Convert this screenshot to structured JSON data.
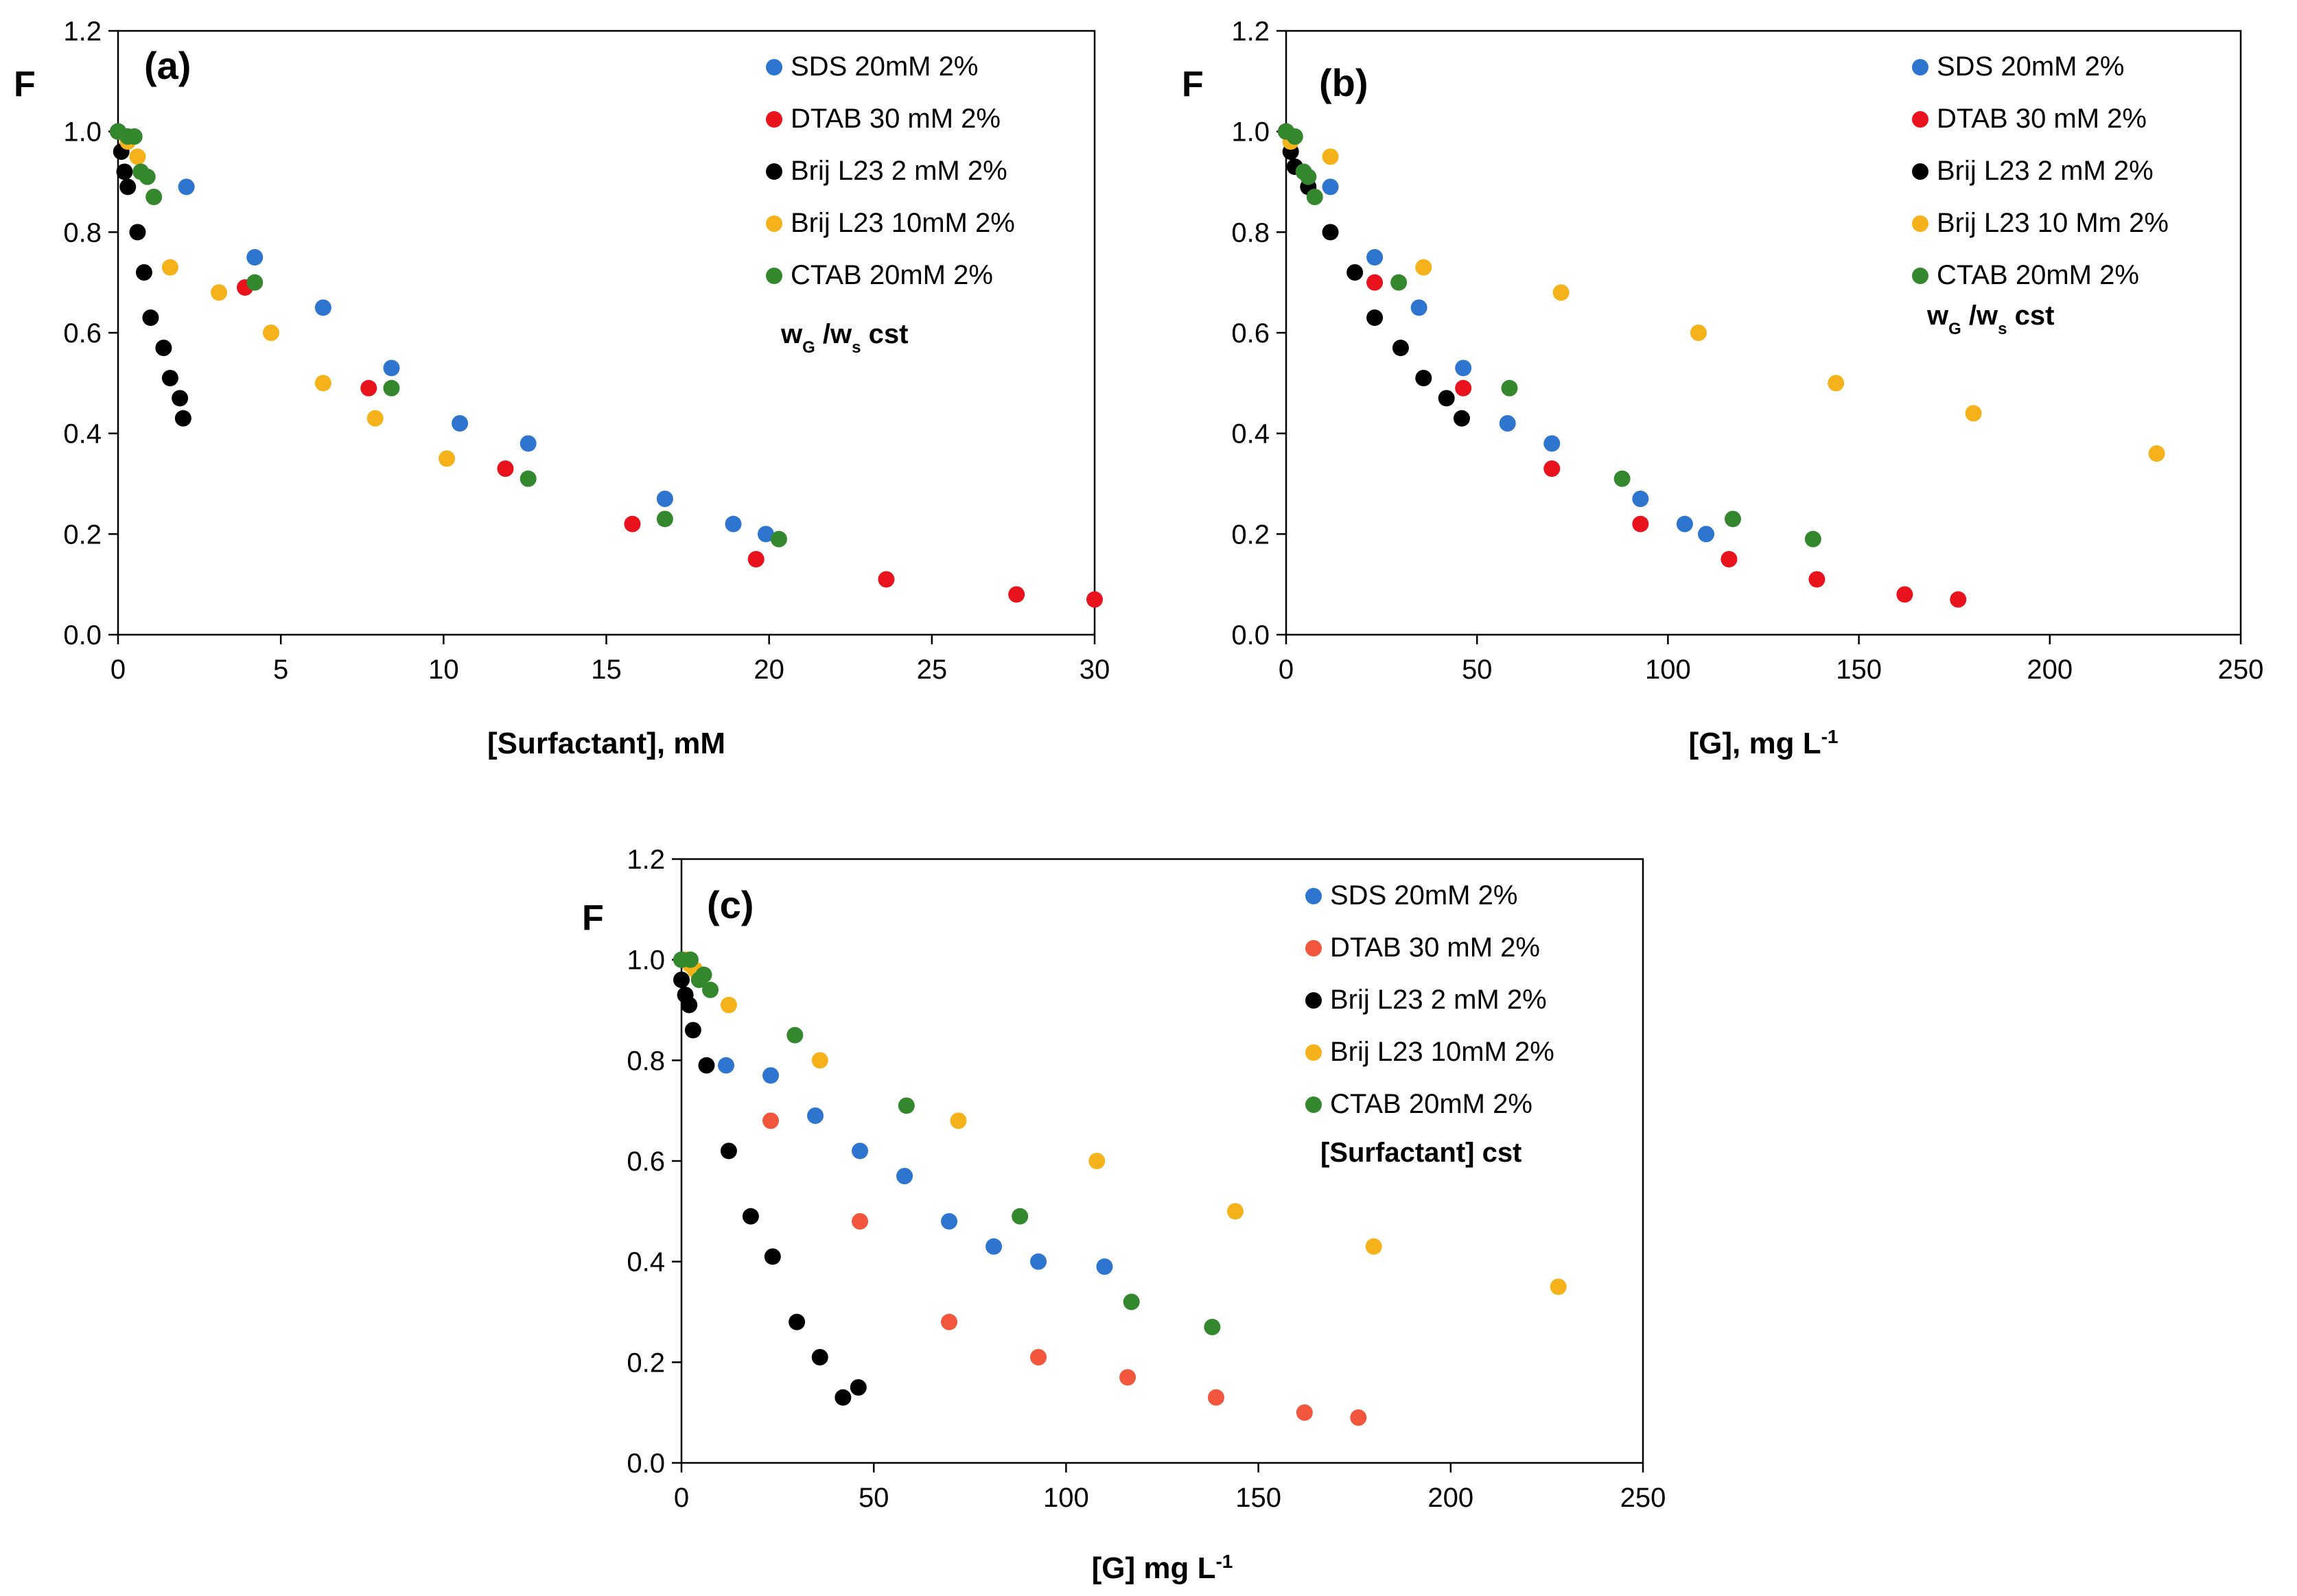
{
  "colors": {
    "SDS": "#2e75d0",
    "DTAB": "#e8131d",
    "DTAB_c": "#f2573d",
    "Brij2": "#000000",
    "Brij10": "#f5b21a",
    "CTAB": "#33882e"
  },
  "chart_data": [
    {
      "type": "scatter",
      "panel": "(a)",
      "ylabel": "F",
      "xlabel": "[Surfactant], mM",
      "xlim": [
        0,
        30
      ],
      "ylim": [
        0,
        1.2
      ],
      "xticks": [
        0,
        5,
        10,
        15,
        20,
        25,
        30
      ],
      "yticks": [
        0.0,
        0.2,
        0.4,
        0.6,
        0.8,
        1.0,
        1.2
      ],
      "legend_position": "top-right",
      "note": {
        "main": "w",
        "sub1": "G",
        "mid": " /w",
        "sub2": "s",
        "end": " cst"
      },
      "series": [
        {
          "name": "SDS 20mM 2%",
          "color_key": "SDS",
          "points": [
            [
              0,
              1.0
            ],
            [
              0.3,
              0.99
            ],
            [
              2.1,
              0.89
            ],
            [
              4.2,
              0.75
            ],
            [
              6.3,
              0.65
            ],
            [
              8.4,
              0.53
            ],
            [
              10.5,
              0.42
            ],
            [
              12.6,
              0.38
            ],
            [
              16.8,
              0.27
            ],
            [
              18.9,
              0.22
            ],
            [
              19.9,
              0.2
            ]
          ]
        },
        {
          "name": "DTAB 30 mM 2%",
          "color_key": "DTAB",
          "points": [
            [
              0,
              1.0
            ],
            [
              3.9,
              0.69
            ],
            [
              7.7,
              0.49
            ],
            [
              11.9,
              0.33
            ],
            [
              15.8,
              0.22
            ],
            [
              19.6,
              0.15
            ],
            [
              23.6,
              0.11
            ],
            [
              27.6,
              0.08
            ],
            [
              30,
              0.07
            ]
          ]
        },
        {
          "name": "Brij L23 2 mM 2%",
          "color_key": "Brij2",
          "points": [
            [
              0,
              1.0
            ],
            [
              0.1,
              0.96
            ],
            [
              0.2,
              0.92
            ],
            [
              0.3,
              0.89
            ],
            [
              0.6,
              0.8
            ],
            [
              0.8,
              0.72
            ],
            [
              1.0,
              0.63
            ],
            [
              1.4,
              0.57
            ],
            [
              1.6,
              0.51
            ],
            [
              1.9,
              0.47
            ],
            [
              2.0,
              0.43
            ]
          ]
        },
        {
          "name": "Brij L23 10mM 2%",
          "color_key": "Brij10",
          "points": [
            [
              0.3,
              0.98
            ],
            [
              0.6,
              0.95
            ],
            [
              1.6,
              0.73
            ],
            [
              3.1,
              0.68
            ],
            [
              4.7,
              0.6
            ],
            [
              6.3,
              0.5
            ],
            [
              7.9,
              0.43
            ],
            [
              10.1,
              0.35
            ]
          ]
        },
        {
          "name": "CTAB 20mM 2%",
          "color_key": "CTAB",
          "points": [
            [
              0,
              1.0
            ],
            [
              0.3,
              0.99
            ],
            [
              0.5,
              0.99
            ],
            [
              0.7,
              0.92
            ],
            [
              0.9,
              0.91
            ],
            [
              1.1,
              0.87
            ],
            [
              4.2,
              0.7
            ],
            [
              8.4,
              0.49
            ],
            [
              12.6,
              0.31
            ],
            [
              16.8,
              0.23
            ],
            [
              20.3,
              0.19
            ]
          ]
        }
      ]
    },
    {
      "type": "scatter",
      "panel": "(b)",
      "ylabel": "F",
      "xlabel": "[G], mg L",
      "xlabel_sup": "-1",
      "xlim": [
        0,
        250
      ],
      "ylim": [
        0,
        1.2
      ],
      "xticks": [
        0,
        50,
        100,
        150,
        200,
        250
      ],
      "yticks": [
        0.0,
        0.2,
        0.4,
        0.6,
        0.8,
        1.0,
        1.2
      ],
      "legend_position": "top-right",
      "note": {
        "main": "w",
        "sub1": "G",
        "mid": " /w",
        "sub2": "s",
        "end": " cst"
      },
      "series": [
        {
          "name": "SDS 20mM 2%",
          "color_key": "SDS",
          "points": [
            [
              0,
              1.0
            ],
            [
              11.6,
              0.89
            ],
            [
              23.2,
              0.75
            ],
            [
              34.8,
              0.65
            ],
            [
              46.4,
              0.53
            ],
            [
              58,
              0.42
            ],
            [
              69.6,
              0.38
            ],
            [
              92.8,
              0.27
            ],
            [
              104.4,
              0.22
            ],
            [
              110,
              0.2
            ]
          ]
        },
        {
          "name": "DTAB 30 mM 2%",
          "color_key": "DTAB",
          "points": [
            [
              0,
              1.0
            ],
            [
              23.2,
              0.7
            ],
            [
              46.4,
              0.49
            ],
            [
              69.6,
              0.33
            ],
            [
              92.8,
              0.22
            ],
            [
              116,
              0.15
            ],
            [
              139,
              0.11
            ],
            [
              162,
              0.08
            ],
            [
              176,
              0.07
            ]
          ]
        },
        {
          "name": "Brij L23 2 mM 2%",
          "color_key": "Brij2",
          "points": [
            [
              0,
              1.0
            ],
            [
              1.2,
              0.96
            ],
            [
              2.3,
              0.93
            ],
            [
              5.8,
              0.89
            ],
            [
              11.6,
              0.8
            ],
            [
              18,
              0.72
            ],
            [
              23.2,
              0.63
            ],
            [
              30,
              0.57
            ],
            [
              36,
              0.51
            ],
            [
              42,
              0.47
            ],
            [
              46,
              0.43
            ]
          ]
        },
        {
          "name": "Brij L23 10 Mm 2%",
          "color_key": "Brij10",
          "points": [
            [
              1.2,
              0.98
            ],
            [
              11.6,
              0.95
            ],
            [
              36,
              0.73
            ],
            [
              72,
              0.68
            ],
            [
              108,
              0.6
            ],
            [
              144,
              0.5
            ],
            [
              180,
              0.44
            ],
            [
              228,
              0.36
            ]
          ]
        },
        {
          "name": "CTAB 20mM 2%",
          "color_key": "CTAB",
          "points": [
            [
              0,
              1.0
            ],
            [
              2.3,
              0.99
            ],
            [
              4.6,
              0.92
            ],
            [
              5.8,
              0.91
            ],
            [
              7.5,
              0.87
            ],
            [
              29.5,
              0.7
            ],
            [
              58.5,
              0.49
            ],
            [
              88,
              0.31
            ],
            [
              117,
              0.23
            ],
            [
              138,
              0.19
            ]
          ]
        }
      ]
    },
    {
      "type": "scatter",
      "panel": "(c)",
      "ylabel": "F",
      "xlabel": "[G] mg L",
      "xlabel_sup": "-1",
      "xlim": [
        0,
        250
      ],
      "ylim": [
        0,
        1.2
      ],
      "xticks": [
        0,
        50,
        100,
        150,
        200,
        250
      ],
      "yticks": [
        0.0,
        0.2,
        0.4,
        0.6,
        0.8,
        1.0,
        1.2
      ],
      "legend_position": "top-right",
      "note": {
        "text": "[Surfactant] cst"
      },
      "series": [
        {
          "name": "SDS 20mM 2%",
          "color_key": "SDS",
          "points": [
            [
              0,
              1.0
            ],
            [
              11.6,
              0.79
            ],
            [
              23.2,
              0.77
            ],
            [
              34.8,
              0.69
            ],
            [
              46.4,
              0.62
            ],
            [
              58,
              0.57
            ],
            [
              69.6,
              0.48
            ],
            [
              81.2,
              0.43
            ],
            [
              92.8,
              0.4
            ],
            [
              110,
              0.39
            ]
          ]
        },
        {
          "name": "DTAB 30 mM 2%",
          "color_key": "DTAB_c",
          "points": [
            [
              23.2,
              0.68
            ],
            [
              46.4,
              0.48
            ],
            [
              69.6,
              0.28
            ],
            [
              92.8,
              0.21
            ],
            [
              116,
              0.17
            ],
            [
              139,
              0.13
            ],
            [
              162,
              0.1
            ],
            [
              176,
              0.09
            ]
          ]
        },
        {
          "name": "Brij L23 2 mM 2%",
          "color_key": "Brij2",
          "points": [
            [
              0,
              0.96
            ],
            [
              1,
              0.93
            ],
            [
              2,
              0.91
            ],
            [
              3,
              0.86
            ],
            [
              6.5,
              0.79
            ],
            [
              12.3,
              0.62
            ],
            [
              18,
              0.49
            ],
            [
              23.7,
              0.41
            ],
            [
              30,
              0.28
            ],
            [
              36,
              0.21
            ],
            [
              42,
              0.13
            ],
            [
              46,
              0.15
            ]
          ]
        },
        {
          "name": "Brij L23 10mM 2%",
          "color_key": "Brij10",
          "points": [
            [
              1.2,
              1.0
            ],
            [
              2.3,
              0.99
            ],
            [
              3.5,
              0.98
            ],
            [
              12.3,
              0.91
            ],
            [
              36,
              0.8
            ],
            [
              72,
              0.68
            ],
            [
              108,
              0.6
            ],
            [
              144,
              0.5
            ],
            [
              180,
              0.43
            ],
            [
              228,
              0.35
            ]
          ]
        },
        {
          "name": "CTAB 20mM 2%",
          "color_key": "CTAB",
          "points": [
            [
              0,
              1.0
            ],
            [
              2.3,
              1.0
            ],
            [
              4.6,
              0.96
            ],
            [
              5.8,
              0.97
            ],
            [
              7.5,
              0.94
            ],
            [
              29.5,
              0.85
            ],
            [
              58.5,
              0.71
            ],
            [
              88,
              0.49
            ],
            [
              117,
              0.32
            ],
            [
              138,
              0.27
            ]
          ]
        }
      ]
    }
  ]
}
